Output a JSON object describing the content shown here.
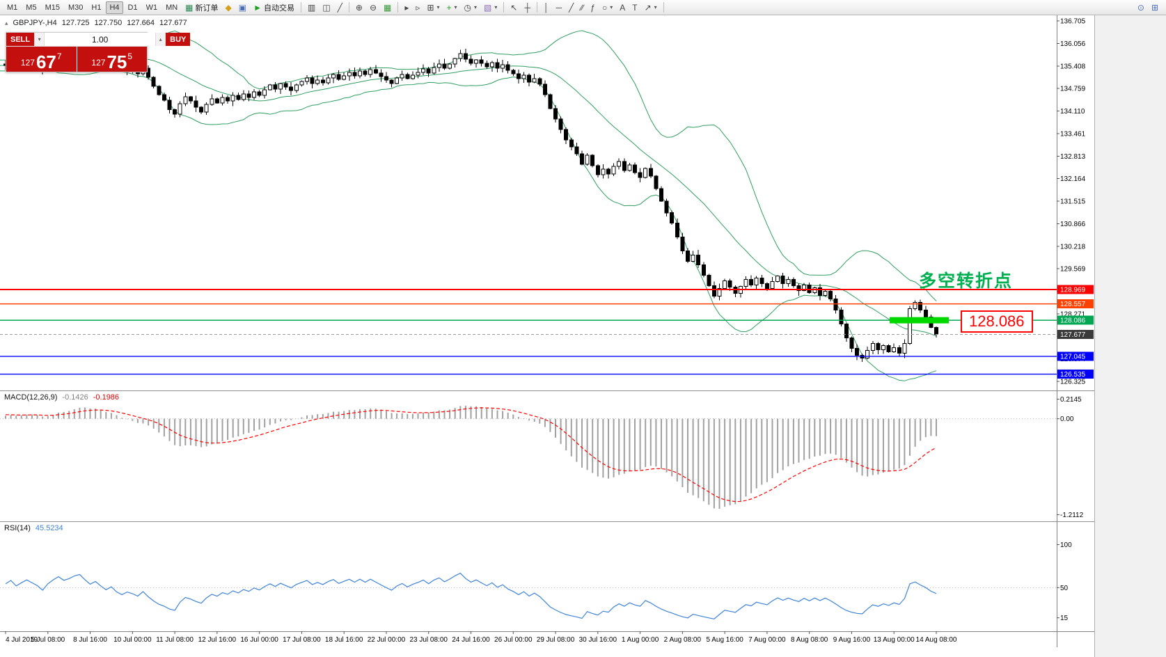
{
  "toolbar": {
    "caret": "▾",
    "buttons": [
      {
        "name": "new-order-button",
        "glyph": "▦",
        "color": "#2e8b57",
        "label": "新订单"
      },
      {
        "name": "metaeditor-button",
        "glyph": "◆",
        "color": "#d4a017"
      },
      {
        "name": "print-button",
        "glyph": "▣",
        "color": "#4a6fb8"
      },
      {
        "name": "autotrading-button",
        "glyph": "►",
        "color": "#18a018",
        "label": "自动交易"
      },
      {
        "sep": true
      },
      {
        "name": "bar-chart-button",
        "glyph": "▥",
        "color": "#444"
      },
      {
        "name": "candlestick-chart-button",
        "glyph": "◫",
        "color": "#444"
      },
      {
        "name": "line-chart-button",
        "glyph": "╱",
        "color": "#444"
      },
      {
        "sep": true
      },
      {
        "name": "zoom-in-button",
        "glyph": "⊕",
        "color": "#444"
      },
      {
        "name": "zoom-out-button",
        "glyph": "⊖",
        "color": "#444"
      },
      {
        "name": "tile-windows-button",
        "glyph": "▦",
        "color": "#3c9a3c"
      },
      {
        "sep": true
      },
      {
        "name": "auto-scroll-button",
        "glyph": "▸",
        "color": "#444"
      },
      {
        "name": "chart-shift-button",
        "glyph": "▹",
        "color": "#444"
      },
      {
        "name": "new-chart-button",
        "glyph": "⊞",
        "color": "#444",
        "caret": true
      },
      {
        "name": "indicators-button",
        "glyph": "+",
        "color": "#18a018",
        "caret": true
      },
      {
        "name": "periods-button",
        "glyph": "◷",
        "color": "#444",
        "caret": true
      },
      {
        "name": "templates-button",
        "glyph": "▧",
        "color": "#8a6fb8",
        "caret": true
      },
      {
        "sep": true
      },
      {
        "name": "cursor-button",
        "glyph": "↖",
        "color": "#444"
      },
      {
        "name": "crosshair-button",
        "glyph": "┼",
        "color": "#444"
      },
      {
        "sep": true
      },
      {
        "name": "vertical-line-button",
        "glyph": "│",
        "color": "#444"
      },
      {
        "name": "horizontal-line-button",
        "glyph": "─",
        "color": "#444"
      },
      {
        "name": "trendline-button",
        "glyph": "╱",
        "color": "#444"
      },
      {
        "name": "channel-button",
        "glyph": "∕∕",
        "color": "#444"
      },
      {
        "name": "fibonacci-button",
        "glyph": "ƒ",
        "color": "#444"
      },
      {
        "name": "shapes-button",
        "glyph": "○",
        "color": "#444",
        "caret": true
      },
      {
        "name": "text-button",
        "glyph": "A",
        "color": "#444"
      },
      {
        "name": "label-button",
        "glyph": "T",
        "color": "#444"
      },
      {
        "name": "arrows-button",
        "glyph": "↗",
        "color": "#444",
        "caret": true
      },
      {
        "sep": true
      }
    ],
    "timeframes": {
      "items": [
        "M1",
        "M5",
        "M15",
        "M30",
        "H1",
        "H4",
        "D1",
        "W1",
        "MN"
      ],
      "active": "H4"
    },
    "right_buttons": [
      {
        "name": "search-button",
        "glyph": "⊙",
        "color": "#4a6fb8"
      },
      {
        "name": "layout-button",
        "glyph": "⊞",
        "color": "#4a6fb8"
      }
    ]
  },
  "symbol_bar": {
    "collapse_glyph": "▴",
    "symbol": "GBPJPY-,H4",
    "open": "127.725",
    "high": "127.750",
    "low": "127.664",
    "close": "127.677"
  },
  "one_click": {
    "sell_label": "SELL",
    "buy_label": "BUY",
    "volume": "1.00",
    "stepper_up": "▴",
    "stepper_down": "▾",
    "sell_price": {
      "prefix": "127",
      "big": "67",
      "sup": "7"
    },
    "buy_price": {
      "prefix": "127",
      "big": "75",
      "sup": "5"
    }
  },
  "price_scale": {
    "max": 136.705,
    "min": 126.325,
    "labels": [
      "136.705",
      "136.056",
      "135.408",
      "134.759",
      "134.110",
      "133.461",
      "132.813",
      "132.164",
      "131.515",
      "130.866",
      "130.218",
      "129.569",
      "128.920",
      "128.271",
      "127.623",
      "126.974",
      "126.325"
    ]
  },
  "levels": [
    {
      "name": "resistance-1",
      "price": 128.969,
      "label": "128.969",
      "color": "#ff0000",
      "width": 2
    },
    {
      "name": "resistance-2",
      "price": 128.557,
      "label": "128.557",
      "color": "#ff4000",
      "width": 1.4
    },
    {
      "name": "pivot-green",
      "price": 128.086,
      "label": "128.086",
      "color": "#00a651",
      "width": 1.6,
      "highlight": true
    },
    {
      "name": "support-1",
      "price": 127.045,
      "label": "127.045",
      "color": "#0000ff",
      "width": 1.4
    },
    {
      "name": "support-2",
      "price": 126.535,
      "label": "126.535",
      "color": "#0000ff",
      "width": 1.4
    }
  ],
  "current_price": {
    "value": 127.677,
    "label": "127.677",
    "tag_color": "#3a3a3a"
  },
  "annotations": {
    "turning_point": "多空转折点",
    "turning_point_color": "#00b050",
    "price_callout": "128.086",
    "highlight_bar_color": "#00d800"
  },
  "macd": {
    "title": "MACD(12,26,9)",
    "value": "-0.1426",
    "signal_value": "-0.1986",
    "scale_top": "0.2145",
    "scale_zero": "0.00",
    "scale_bottom": "-1.2112"
  },
  "rsi": {
    "title": "RSI(14)",
    "value": "45.5234",
    "scale_labels": [
      "100",
      "50",
      "15"
    ],
    "level_values": [
      100,
      50,
      15
    ]
  },
  "time_axis": {
    "labels": [
      "4 Jul 2019",
      "5 Jul 08:00",
      "8 Jul 16:00",
      "10 Jul 00:00",
      "11 Jul 08:00",
      "12 Jul 16:00",
      "16 Jul 00:00",
      "17 Jul 08:00",
      "18 Jul 16:00",
      "22 Jul 00:00",
      "23 Jul 08:00",
      "24 Jul 16:00",
      "26 Jul 00:00",
      "29 Jul 08:00",
      "30 Jul 16:00",
      "1 Aug 00:00",
      "2 Aug 08:00",
      "5 Aug 16:00",
      "7 Aug 00:00",
      "8 Aug 08:00",
      "9 Aug 16:00",
      "13 Aug 00:00",
      "14 Aug 08:00"
    ]
  },
  "chart_data": {
    "type": "candlestick",
    "symbol": "GBPJPY-",
    "timeframe": "H4",
    "colors": {
      "bull": "#ffffff",
      "bear": "#000000",
      "outline": "#000000",
      "bollinger": "#2f9e5f",
      "macd_histogram": "#a0a0a0",
      "macd_signal": "#ff0000",
      "rsi_line": "#3e83d8"
    },
    "bollinger": {
      "period": 20,
      "deviation": 2
    },
    "warmup": [
      135.1,
      135.25,
      135.4,
      135.3,
      135.45,
      135.55,
      135.4,
      135.28,
      135.42,
      135.55,
      135.38,
      135.5,
      135.32,
      135.44,
      135.52,
      135.38,
      135.46,
      135.58,
      135.44,
      135.36,
      135.3,
      135.48,
      135.42,
      135.34,
      135.4,
      135.46
    ],
    "closes": [
      135.42,
      135.55,
      135.38,
      135.5,
      135.62,
      135.53,
      135.44,
      135.28,
      135.52,
      135.7,
      135.86,
      135.74,
      135.82,
      135.96,
      136.04,
      135.88,
      135.72,
      135.84,
      135.68,
      135.52,
      135.64,
      135.42,
      135.28,
      135.38,
      135.3,
      135.18,
      135.34,
      135.08,
      134.82,
      134.58,
      134.42,
      134.15,
      134.02,
      134.32,
      134.52,
      134.4,
      134.22,
      134.08,
      134.3,
      134.46,
      134.34,
      134.5,
      134.4,
      134.56,
      134.44,
      134.6,
      134.5,
      134.66,
      134.56,
      134.72,
      134.86,
      134.74,
      134.9,
      134.8,
      134.7,
      134.86,
      134.96,
      135.06,
      134.9,
      135.0,
      134.92,
      135.06,
      135.16,
      135.02,
      135.12,
      135.22,
      135.12,
      135.26,
      135.16,
      135.3,
      135.2,
      135.1,
      135.0,
      134.9,
      135.06,
      135.16,
      135.04,
      135.14,
      135.22,
      135.32,
      135.2,
      135.36,
      135.46,
      135.34,
      135.46,
      135.62,
      135.76,
      135.6,
      135.48,
      135.58,
      135.48,
      135.38,
      135.5,
      135.34,
      135.44,
      135.28,
      135.18,
      135.04,
      135.14,
      134.94,
      135.04,
      134.88,
      134.58,
      134.18,
      133.88,
      133.58,
      133.28,
      133.08,
      132.88,
      132.58,
      132.84,
      132.54,
      132.28,
      132.44,
      132.3,
      132.52,
      132.66,
      132.4,
      132.56,
      132.34,
      132.2,
      132.46,
      132.24,
      131.88,
      131.52,
      131.18,
      130.88,
      130.48,
      130.08,
      129.78,
      129.96,
      129.68,
      129.38,
      129.08,
      128.78,
      129.0,
      129.22,
      129.04,
      128.86,
      129.06,
      129.26,
      129.1,
      129.3,
      129.14,
      129.0,
      129.2,
      129.36,
      129.14,
      129.26,
      129.08,
      128.94,
      129.1,
      128.88,
      129.02,
      128.8,
      128.92,
      128.7,
      128.38,
      127.98,
      127.58,
      127.28,
      127.08,
      127.0,
      127.22,
      127.42,
      127.24,
      127.36,
      127.18,
      127.3,
      127.14,
      127.42,
      128.42,
      128.6,
      128.38,
      128.18,
      127.88,
      127.677
    ]
  }
}
